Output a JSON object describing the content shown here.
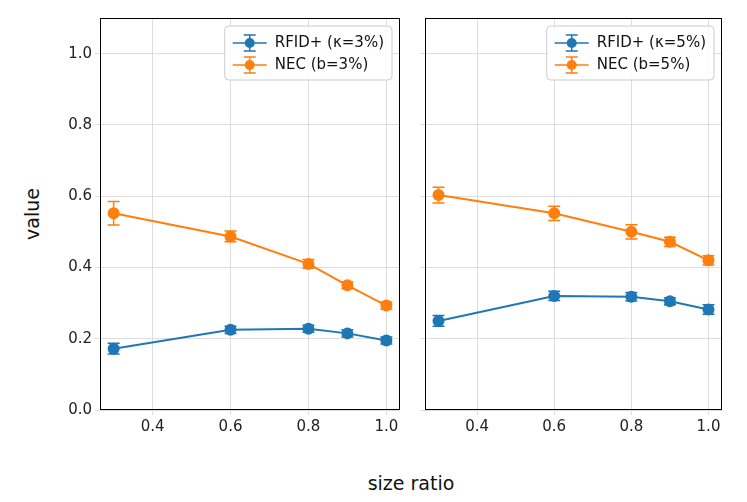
{
  "xlabel": "size ratio",
  "ylabel": "value",
  "chart_data": [
    {
      "type": "line",
      "x": [
        0.3,
        0.6,
        0.8,
        0.9,
        1.0
      ],
      "xlim": [
        0.265,
        1.035
      ],
      "xticks": [
        0.4,
        0.6,
        0.8,
        {
          "value": 1.0,
          "label": "1.0"
        }
      ],
      "ylim": [
        0,
        1.1
      ],
      "yticks": [
        {
          "value": 0,
          "label": "0.0"
        },
        0.2,
        0.4,
        0.6,
        0.8,
        {
          "value": 1.0,
          "label": "1.0"
        }
      ],
      "grid": true,
      "legend": "upper right",
      "series": [
        {
          "name": "RFID+ (κ=3%)",
          "color": "#1f77b4",
          "marker": "circle",
          "values": [
            0.172,
            0.225,
            0.228,
            0.215,
            0.195
          ],
          "errors": [
            0.015,
            0.01,
            0.01,
            0.01,
            0.01
          ]
        },
        {
          "name": "NEC (b=3%)",
          "color": "#ff7f0e",
          "marker": "circle",
          "values": [
            0.552,
            0.487,
            0.41,
            0.35,
            0.293
          ],
          "errors": [
            0.033,
            0.015,
            0.012,
            0.01,
            0.01
          ]
        }
      ]
    },
    {
      "type": "line",
      "x": [
        0.3,
        0.6,
        0.8,
        0.9,
        1.0
      ],
      "xlim": [
        0.265,
        1.035
      ],
      "xticks": [
        0.4,
        0.6,
        0.8,
        {
          "value": 1.0,
          "label": "1.0"
        }
      ],
      "ylim": [
        0,
        1.1
      ],
      "yticks": [
        {
          "value": 0,
          "label": "0.0"
        },
        0.2,
        0.4,
        0.6,
        0.8,
        {
          "value": 1.0,
          "label": "1.0"
        }
      ],
      "grid": true,
      "legend": "upper right",
      "tick_labels": "x",
      "series": [
        {
          "name": "RFID+ (κ=5%)",
          "color": "#1f77b4",
          "marker": "circle",
          "values": [
            0.25,
            0.32,
            0.318,
            0.305,
            0.282
          ],
          "errors": [
            0.015,
            0.013,
            0.012,
            0.01,
            0.013
          ]
        },
        {
          "name": "NEC (b=5%)",
          "color": "#ff7f0e",
          "marker": "circle",
          "values": [
            0.603,
            0.552,
            0.5,
            0.472,
            0.42
          ],
          "errors": [
            0.022,
            0.02,
            0.02,
            0.013,
            0.013
          ]
        }
      ]
    }
  ]
}
